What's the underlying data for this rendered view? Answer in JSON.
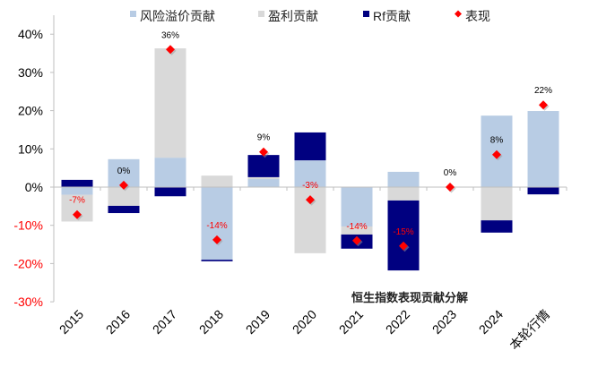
{
  "chart_data": {
    "type": "bar",
    "stacked": true,
    "title": "恒生指数表现贡献分解",
    "xlabel": "",
    "ylabel": "",
    "ylim": [
      -30,
      40
    ],
    "yticks": [
      -30,
      -20,
      -10,
      0,
      10,
      20,
      30,
      40
    ],
    "ytick_labels": [
      "-30%",
      "-20%",
      "-10%",
      "0%",
      "10%",
      "20%",
      "30%",
      "40%"
    ],
    "grid": false,
    "legend_position": "top",
    "categories": [
      "2015",
      "2016",
      "2017",
      "2018",
      "2019",
      "2020",
      "2021",
      "2022",
      "2023",
      "2024",
      "本轮行情"
    ],
    "series": [
      {
        "name": "风险溢价贡献",
        "kind": "bar",
        "color": "#b8cce4",
        "values": [
          -2.0,
          7.3,
          7.7,
          -19.0,
          2.1,
          7.0,
          -10.3,
          4.0,
          0,
          18.7,
          19.9
        ]
      },
      {
        "name": "盈利贡献",
        "kind": "bar",
        "color": "#d9d9d9",
        "values": [
          -7.0,
          -4.9,
          28.6,
          3.0,
          0.5,
          -17.3,
          -2.1,
          -3.5,
          0,
          -8.7,
          0
        ]
      },
      {
        "name": "Rf贡献",
        "kind": "bar",
        "color": "#000080",
        "values": [
          1.9,
          -1.9,
          -2.4,
          -0.4,
          5.8,
          7.3,
          -3.7,
          -18.3,
          0,
          -3.2,
          -1.9
        ]
      },
      {
        "name": "表现",
        "kind": "marker",
        "color": "#ff0000",
        "values": [
          -7.2,
          0.5,
          36.0,
          -13.8,
          9.2,
          -3.3,
          -14.0,
          -15.4,
          0.0,
          8.5,
          21.5
        ],
        "labels": [
          "-7%",
          "0%",
          "36%",
          "-14%",
          "9%",
          "-3%",
          "-14%",
          "-15%",
          "0%",
          "8%",
          "22%"
        ]
      }
    ],
    "colors": {
      "negative_label": "#ff0000",
      "positive_label": "#000000",
      "axis": "#bfbfbf"
    }
  }
}
